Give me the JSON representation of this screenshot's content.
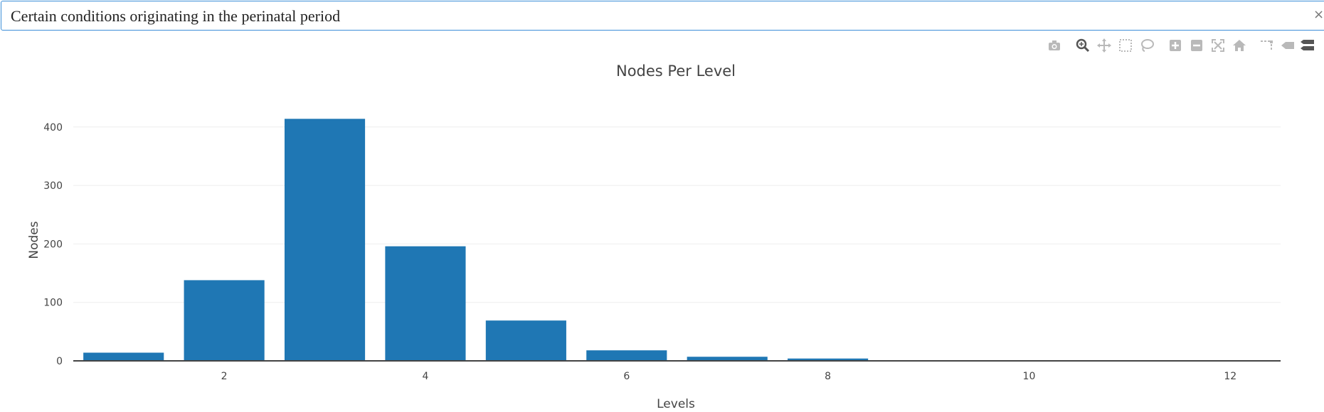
{
  "search": {
    "value": "Certain conditions originating in the perinatal period",
    "clear_icon": "×"
  },
  "modebar": {
    "icons": [
      "camera-icon",
      "zoom-icon",
      "pan-icon",
      "box-select-icon",
      "lasso-select-icon",
      "zoom-in-icon",
      "zoom-out-icon",
      "autoscale-icon",
      "reset-axes-icon",
      "spike-lines-icon",
      "hover-closest-icon",
      "hover-compare-icon"
    ]
  },
  "chart_data": {
    "type": "bar",
    "title": "Nodes Per Level",
    "xlabel": "Levels",
    "ylabel": "Nodes",
    "x": [
      1,
      2,
      3,
      4,
      5,
      6,
      7,
      8,
      9,
      10,
      11,
      12
    ],
    "values": [
      14,
      138,
      414,
      196,
      69,
      18,
      7,
      4,
      1,
      1,
      1,
      1
    ],
    "xlim": [
      0.5,
      12.5
    ],
    "ylim": [
      0,
      435
    ],
    "xticks": [
      2,
      4,
      6,
      8,
      10,
      12
    ],
    "yticks": [
      0,
      100,
      200,
      300,
      400
    ],
    "bar_color": "#1f77b4",
    "grid": true
  }
}
